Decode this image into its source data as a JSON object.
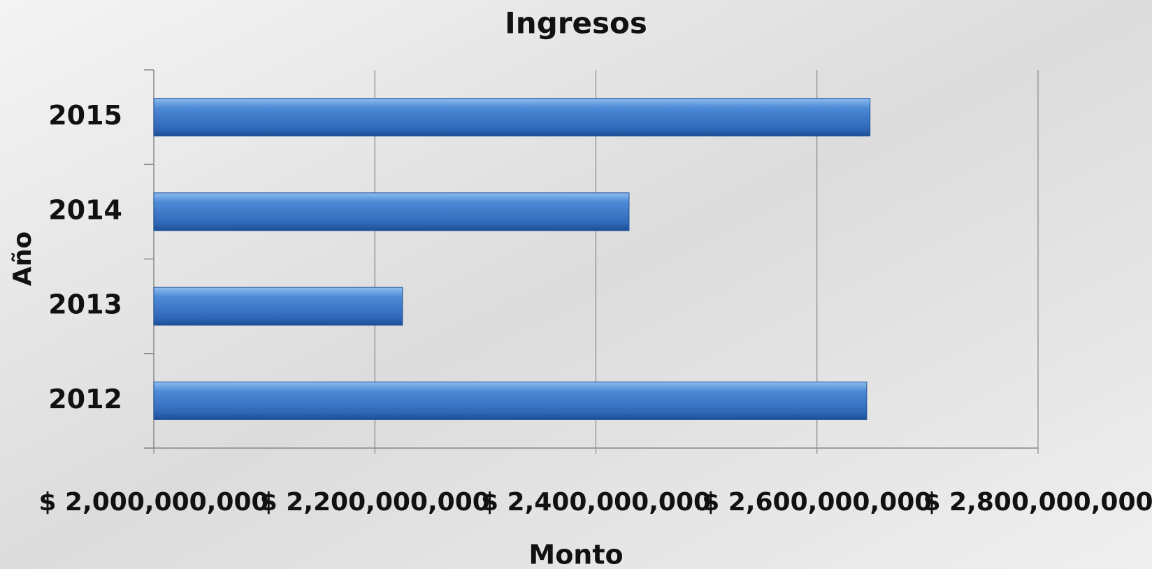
{
  "chart_data": {
    "type": "barh",
    "title": "Ingresos",
    "x_label": "Monto",
    "y_label": "Año",
    "categories": [
      "2012",
      "2013",
      "2014",
      "2015"
    ],
    "values": [
      2645000000,
      2225000000,
      2430000000,
      2648000000
    ],
    "color": "#3b78c9",
    "xlim": [
      2000000000,
      2800000000
    ],
    "xticks": [
      {
        "value": 2000000000,
        "label": "$ 2,000,000,000"
      },
      {
        "value": 2200000000,
        "label": "$ 2,200,000,000"
      },
      {
        "value": 2400000000,
        "label": "$ 2,400,000,000"
      },
      {
        "value": 2600000000,
        "label": "$ 2,600,000,000"
      },
      {
        "value": 2800000000,
        "label": "$ 2,800,000,000"
      }
    ],
    "grid": true
  }
}
